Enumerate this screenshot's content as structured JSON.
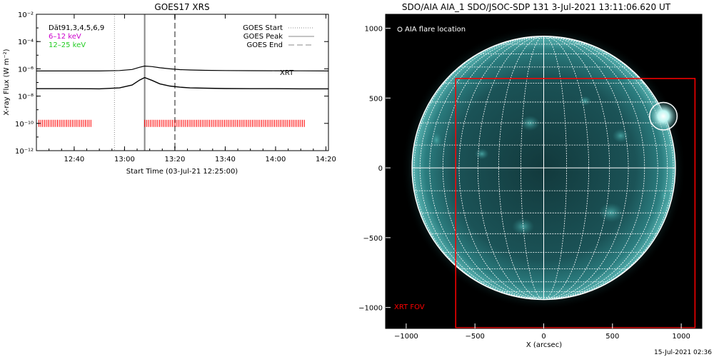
{
  "timestamp": "15-Jul-2021 02:36",
  "chart_data": [
    {
      "type": "line",
      "title": "GOES17 XRS",
      "xlabel": "Start Time (03-Jul-21 12:25:00)",
      "ylabel": "X-ray Flux (W m⁻²)",
      "xlim": [
        "12:25",
        "14:21"
      ],
      "ylim": [
        1e-12,
        0.01
      ],
      "yscale": "log",
      "x_ticks": [
        "12:40",
        "13:00",
        "13:20",
        "13:40",
        "14:00",
        "14:20"
      ],
      "y_ticks": [
        {
          "value": 0.01,
          "label": "10⁻²"
        },
        {
          "value": 0.0001,
          "label": "10⁻⁴"
        },
        {
          "value": 1e-06,
          "label": "10⁻⁶"
        },
        {
          "value": 1e-08,
          "label": "10⁻⁸"
        },
        {
          "value": 1e-10,
          "label": "10⁻¹⁰"
        },
        {
          "value": 1e-12,
          "label": "10⁻¹²"
        }
      ],
      "info_lines": [
        {
          "text": "Dät91,3,4,5,6,9",
          "color": "#000000"
        },
        {
          "text": "6–12  keV",
          "color": "#cc00cc"
        },
        {
          "text": "12–25 keV",
          "color": "#22cc22"
        }
      ],
      "legend": {
        "position": "top-right",
        "entries": [
          {
            "name": "GOES Start",
            "style": "dotted"
          },
          {
            "name": "GOES Peak",
            "style": "solid"
          },
          {
            "name": "GOES End",
            "style": "dashed"
          }
        ]
      },
      "markers": {
        "start": "12:56",
        "peak": "13:08",
        "end": "13:20"
      },
      "series": [
        {
          "name": "",
          "color": "#000000",
          "x": [
            "12:25",
            "12:40",
            "12:50",
            "12:58",
            "13:03",
            "13:06",
            "13:08",
            "13:11",
            "13:14",
            "13:18",
            "13:22",
            "13:26",
            "13:32",
            "13:40",
            "13:50",
            "14:00",
            "14:10",
            "14:21"
          ],
          "values": [
            7e-07,
            7e-07,
            7e-07,
            7.5e-07,
            9e-07,
            1.3e-06,
            1.6e-06,
            1.45e-06,
            1.2e-06,
            1e-06,
            8.8e-07,
            8.2e-07,
            7.8e-07,
            7.5e-07,
            7.3e-07,
            7.2e-07,
            7.1e-07,
            7e-07
          ]
        },
        {
          "name": "",
          "color": "#000000",
          "x": [
            "12:25",
            "12:40",
            "12:50",
            "12:58",
            "13:03",
            "13:06",
            "13:08",
            "13:11",
            "13:14",
            "13:18",
            "13:22",
            "13:26",
            "13:32",
            "13:40",
            "13:50",
            "14:00",
            "14:10",
            "14:21"
          ],
          "values": [
            3.5e-08,
            3.5e-08,
            3.4e-08,
            4e-08,
            6.5e-08,
            1.5e-07,
            2.3e-07,
            1.4e-07,
            8e-08,
            5.5e-08,
            4.5e-08,
            4e-08,
            3.8e-08,
            3.6e-08,
            3.5e-08,
            3.5e-08,
            3.4e-08,
            3.4e-08
          ]
        }
      ],
      "xrt_label": "XRT",
      "xrt_label_color": "#ff0000",
      "xrt_coverage": {
        "color": "#ff0000",
        "level": 1e-10,
        "intervals": [
          [
            "12:26",
            "12:47"
          ],
          [
            "13:08",
            "14:12"
          ]
        ]
      }
    },
    {
      "type": "image",
      "title": "SDO/AIA AIA_1 SDO/JSOC-SDP 131  3-Jul-2021 13:11:06.620 UT",
      "xlabel": "X (arcsec)",
      "ylabel": "",
      "xlim": [
        -1150,
        1150
      ],
      "ylim": [
        -1150,
        1100
      ],
      "x_ticks": [
        -1000,
        -500,
        0,
        500,
        1000
      ],
      "y_ticks": [
        1000,
        500,
        0,
        -500,
        -1000
      ],
      "legend_text": "AIA flare location",
      "solar_radius": 950,
      "grid_step_deg": 10,
      "flare_location": {
        "x": 870,
        "y": 370,
        "r": 100
      },
      "xrt_fov": {
        "label": "XRT FOV",
        "color": "#ff0000",
        "x0": -640,
        "x1": 1100,
        "y0": -1150,
        "y1": 640
      },
      "colors": {
        "sun": "#3a9b9b",
        "background": "#000000",
        "grid": "#ffffff"
      }
    }
  ]
}
